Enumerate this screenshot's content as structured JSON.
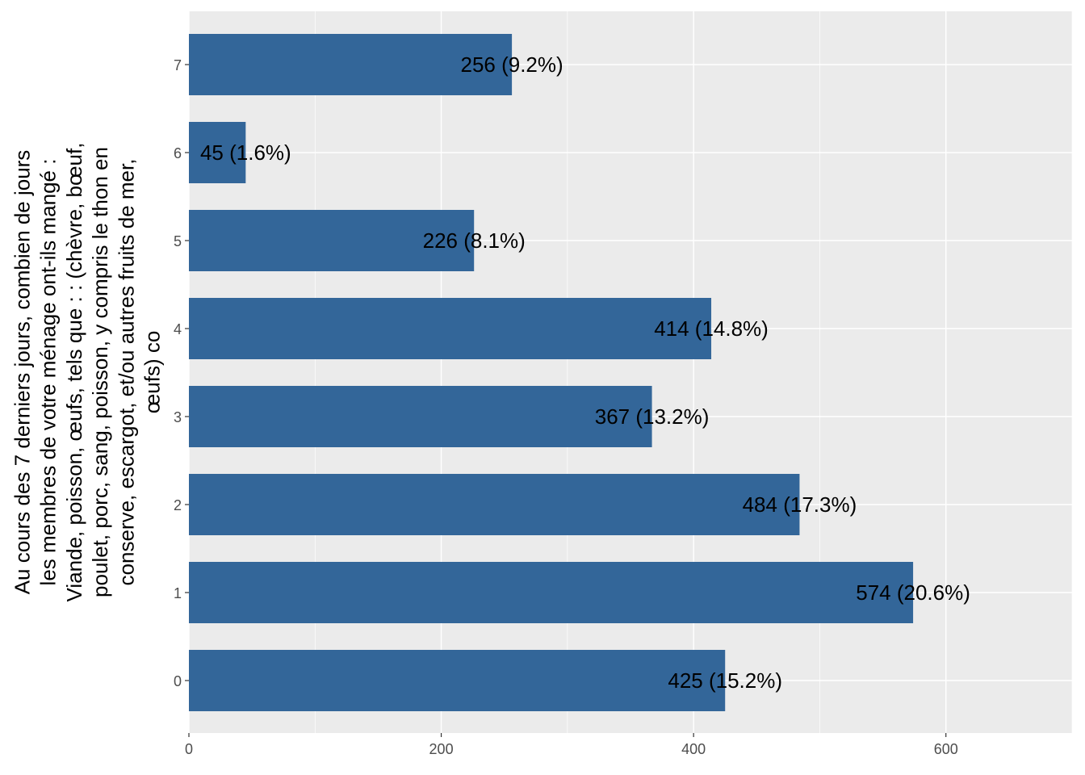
{
  "chart_data": {
    "type": "bar",
    "orientation": "horizontal",
    "categories": [
      "0",
      "1",
      "2",
      "3",
      "4",
      "5",
      "6",
      "7"
    ],
    "values": [
      425,
      574,
      484,
      367,
      414,
      226,
      45,
      256
    ],
    "data_labels": [
      "425 (15.2%)",
      "574 (20.6%)",
      "484 (17.3%)",
      "367 (13.2%)",
      "414 (14.8%)",
      "226 (8.1%)",
      "45 (1.6%)",
      "256 (9.2%)"
    ],
    "title": "",
    "xlabel": "",
    "ylabel_lines": [
      "Au cours des 7 derniers jours, combien de jours",
      "les membres de votre ménage ont-ils mangé :",
      "Viande, poisson, œufs, tels que : : (chèvre, bœuf,",
      "poulet, porc, sang, poisson, y compris le thon en",
      "conserve, escargot, et/ou autres fruits de mer,",
      "œufs) co"
    ],
    "x_ticks": [
      "0",
      "200",
      "400",
      "600"
    ],
    "x_tick_values": [
      0,
      200,
      400,
      600
    ],
    "xlim": [
      0,
      700
    ],
    "grid": true,
    "legend": "none",
    "colors": {
      "bar": "#336699",
      "panel": "#ebebeb",
      "grid": "#ffffff"
    }
  }
}
